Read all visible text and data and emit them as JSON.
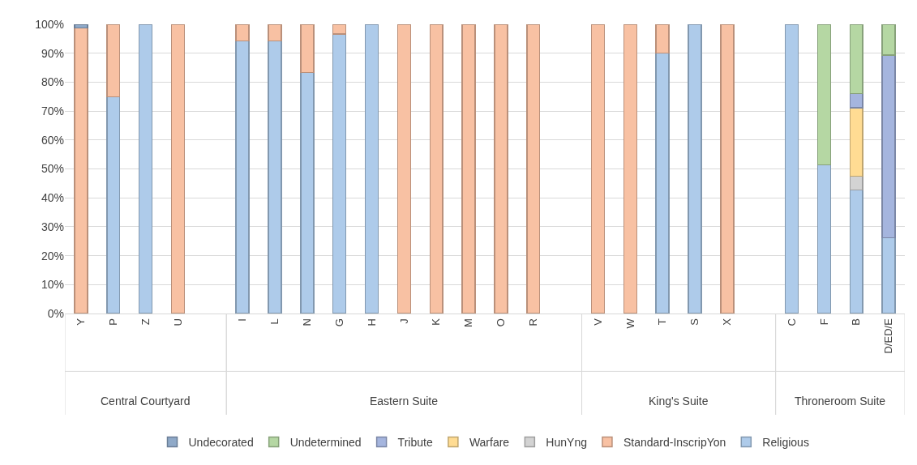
{
  "chart_data": {
    "type": "bar",
    "stacked": true,
    "categories": [
      "Y",
      "P",
      "Z",
      "U",
      null,
      "I",
      "L",
      "N",
      "G",
      "H",
      "J",
      "K",
      "M",
      "O",
      "R",
      null,
      "V",
      "W",
      "T",
      "S",
      "X",
      null,
      "C",
      "F",
      "B",
      "D/ED/E"
    ],
    "series": [
      {
        "name": "Religious",
        "color": "#aecbea",
        "values": [
          null,
          75,
          100,
          null,
          null,
          94.3,
          94.3,
          83.3,
          96.7,
          100,
          null,
          null,
          null,
          null,
          null,
          null,
          null,
          null,
          90,
          100,
          null,
          null,
          100,
          51.4,
          42.7,
          26.2
        ]
      },
      {
        "name": "Standard-InscripYon",
        "color": "#f8c1a3",
        "values": [
          98.8,
          25,
          null,
          100,
          null,
          5.7,
          5.7,
          16.7,
          3.3,
          null,
          100,
          100,
          100,
          100,
          100,
          null,
          100,
          100,
          10,
          null,
          100,
          null,
          null,
          null,
          null,
          null
        ]
      },
      {
        "name": "HunYng",
        "color": "#d3d3d3",
        "values": [
          null,
          null,
          null,
          null,
          null,
          null,
          null,
          null,
          null,
          null,
          null,
          null,
          null,
          null,
          null,
          null,
          null,
          null,
          null,
          null,
          null,
          null,
          null,
          null,
          4.8,
          null
        ]
      },
      {
        "name": "Warfare",
        "color": "#ffdc93",
        "values": [
          null,
          null,
          null,
          null,
          null,
          null,
          null,
          null,
          null,
          null,
          null,
          null,
          null,
          null,
          null,
          null,
          null,
          null,
          null,
          null,
          null,
          null,
          null,
          null,
          23.7,
          null
        ]
      },
      {
        "name": "Tribute",
        "color": "#a5b5de",
        "values": [
          null,
          null,
          null,
          null,
          null,
          null,
          null,
          null,
          null,
          null,
          null,
          null,
          null,
          null,
          null,
          null,
          null,
          null,
          null,
          null,
          null,
          null,
          null,
          null,
          4.9,
          63.1
        ]
      },
      {
        "name": "Undetermined",
        "color": "#b5d7a3",
        "values": [
          null,
          null,
          null,
          null,
          null,
          null,
          null,
          null,
          null,
          null,
          null,
          null,
          null,
          null,
          null,
          null,
          null,
          null,
          null,
          null,
          null,
          null,
          null,
          48.6,
          23.9,
          10.7
        ]
      },
      {
        "name": "Undecorated",
        "color": "#8fa9c8",
        "values": [
          1.2,
          null,
          null,
          null,
          null,
          null,
          null,
          null,
          null,
          null,
          null,
          null,
          null,
          null,
          null,
          null,
          null,
          null,
          null,
          null,
          null,
          null,
          null,
          null,
          null,
          null
        ]
      }
    ],
    "annotations": [
      "Central Courtyard",
      "Eastern Suite",
      "King's Suite",
      "Throneroom Suite"
    ],
    "ylim": [
      0,
      100
    ],
    "yticks": [
      {
        "value": 0,
        "label": "0%"
      },
      {
        "value": 10,
        "label": "10%"
      },
      {
        "value": 20,
        "label": "20%"
      },
      {
        "value": 30,
        "label": "30%"
      },
      {
        "value": 40,
        "label": "40%"
      },
      {
        "value": 50,
        "label": "50%"
      },
      {
        "value": 60,
        "label": "60%"
      },
      {
        "value": 70,
        "label": "70%"
      },
      {
        "value": 80,
        "label": "80%"
      },
      {
        "value": 90,
        "label": "90%"
      },
      {
        "value": 100,
        "label": "100%"
      }
    ],
    "grid": "y",
    "legend": "bottom"
  }
}
